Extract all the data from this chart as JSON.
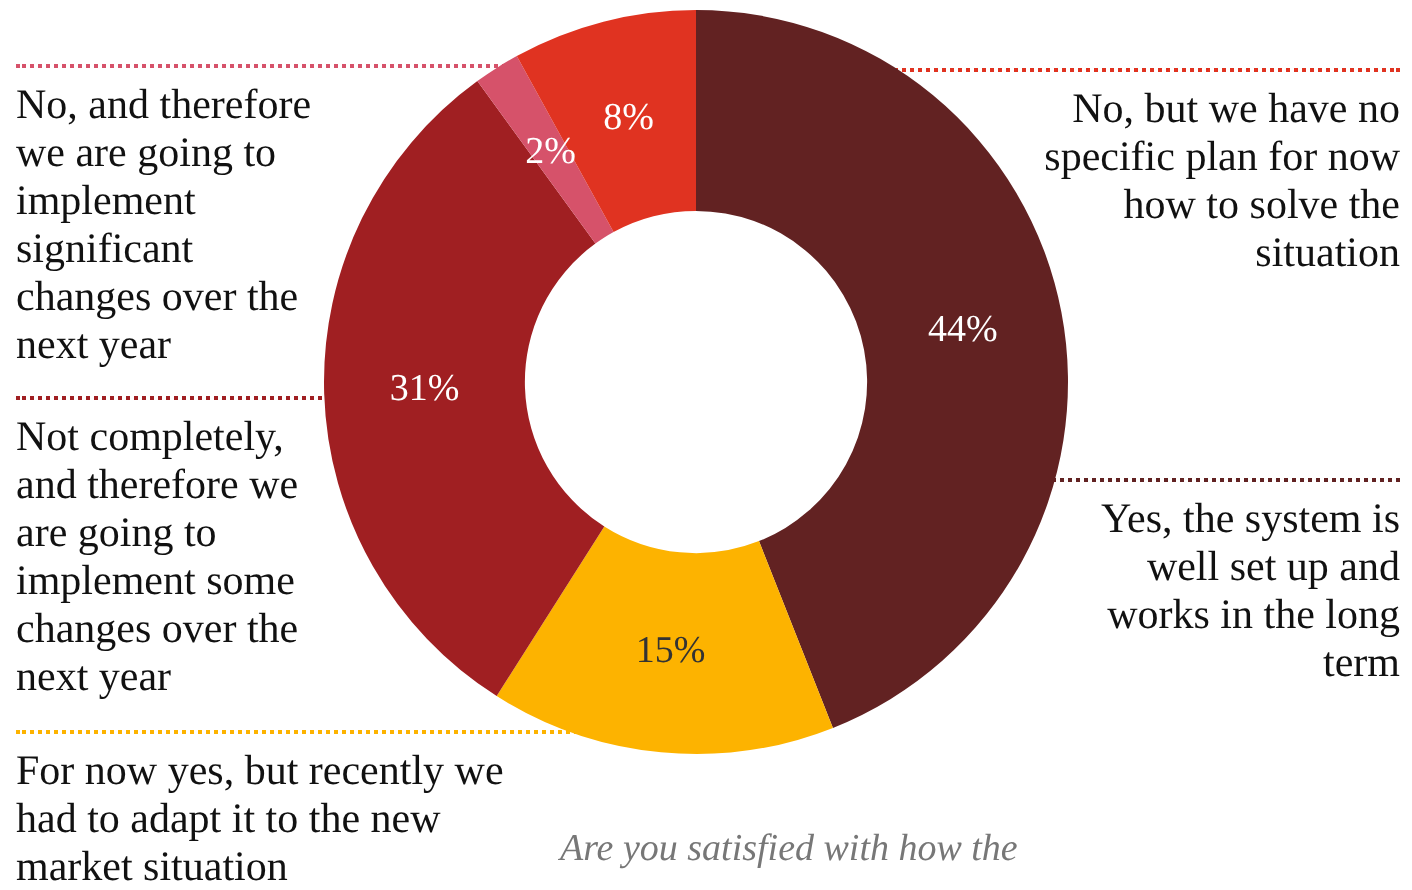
{
  "chart_data": {
    "type": "donut",
    "categories": [
      "Yes, the system is well set up and works in the long term",
      "For now yes, but recently we had to adapt it to the new market situation",
      "Not completely, and therefore we are going to implement some changes over the next year",
      "No, and therefore we are going to implement significant changes over the next year",
      "No, but we have no specific plan for now how to solve the situation"
    ],
    "values": [
      44,
      15,
      31,
      2,
      8
    ],
    "value_labels": [
      "44%",
      "15%",
      "31%",
      "2%",
      "8%"
    ],
    "colors": [
      "#622222",
      "#fdb300",
      "#a01f22",
      "#d6526a",
      "#e03321"
    ],
    "annotations": [
      "Are you satisfied with how the"
    ],
    "legend": false
  }
}
